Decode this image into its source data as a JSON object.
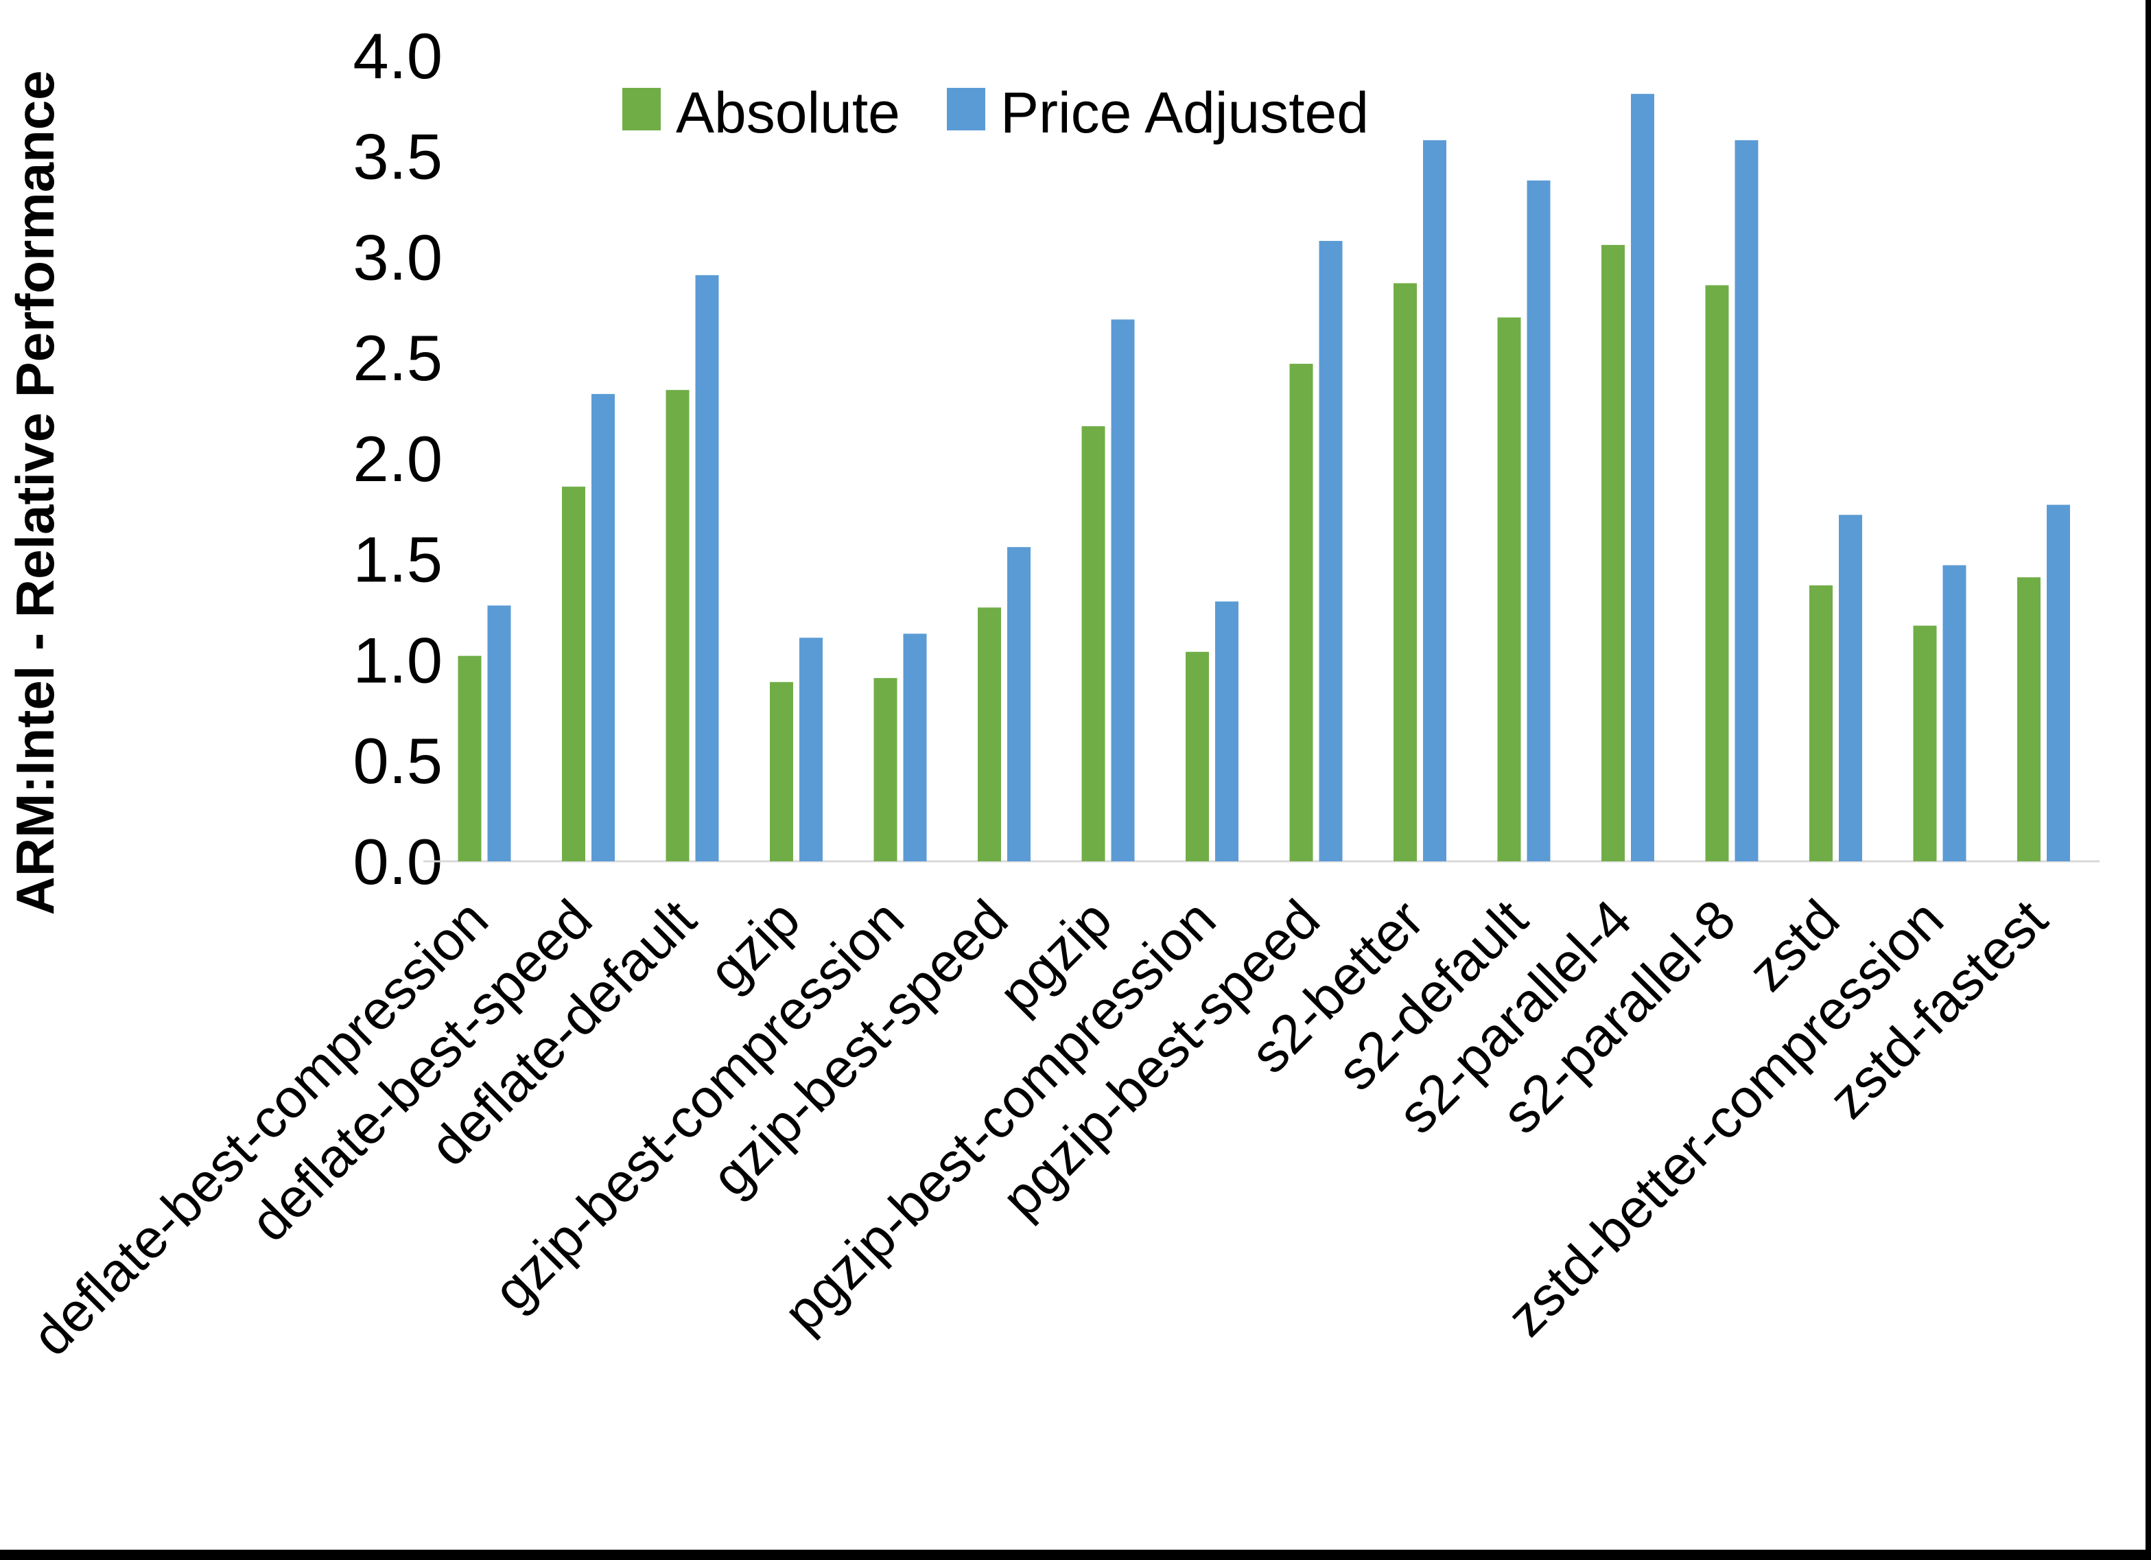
{
  "chart_data": {
    "type": "bar",
    "title": "",
    "xlabel": "",
    "ylabel": "ARM:Intel - Relative Performance",
    "ylim": [
      0.0,
      4.0
    ],
    "ytick_step": 0.5,
    "yticks": [
      "0.0",
      "0.5",
      "1.0",
      "1.5",
      "2.0",
      "2.5",
      "3.0",
      "3.5",
      "4.0"
    ],
    "grid": false,
    "legend_position": "top-center",
    "categories": [
      "deflate-best-compression",
      "deflate-best-speed",
      "deflate-default",
      "gzip",
      "gzip-best-compression",
      "gzip-best-speed",
      "pgzip",
      "pgzip-best-compression",
      "pgzip-best-speed",
      "s2-better",
      "s2-default",
      "s2-parallel-4",
      "s2-parallel-8",
      "zstd",
      "zstd-better-compression",
      "zstd-fastest"
    ],
    "series": [
      {
        "name": "Absolute",
        "color": "#70AD47",
        "values": [
          1.02,
          1.86,
          2.34,
          0.89,
          0.91,
          1.26,
          2.16,
          1.04,
          2.47,
          2.87,
          2.7,
          3.06,
          2.86,
          1.37,
          1.17,
          1.41
        ]
      },
      {
        "name": "Price Adjusted",
        "color": "#5B9BD5",
        "values": [
          1.27,
          2.32,
          2.91,
          1.11,
          1.13,
          1.56,
          2.69,
          1.29,
          3.08,
          3.58,
          3.38,
          3.81,
          3.58,
          1.72,
          1.47,
          1.77
        ]
      }
    ]
  },
  "colors": {
    "background": "#FFFFFF",
    "axis_line": "#D9D9D9",
    "text": "#000000",
    "window_border": "#000000"
  }
}
